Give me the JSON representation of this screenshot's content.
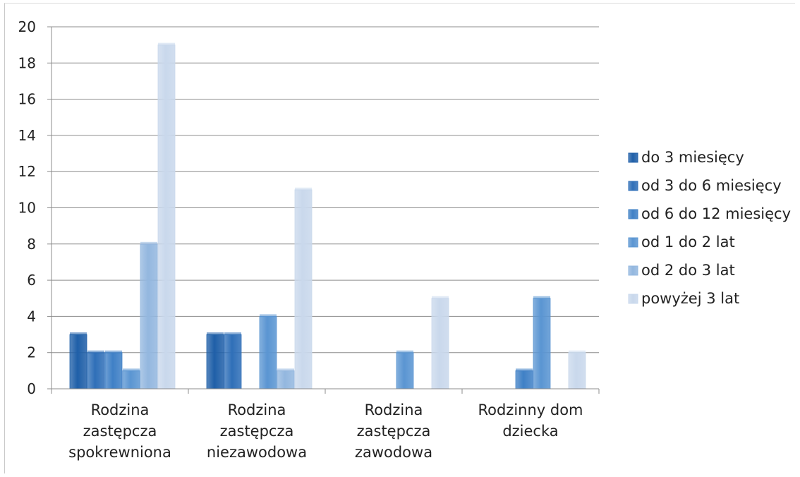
{
  "chart_data": {
    "type": "bar",
    "title": "",
    "xlabel": "",
    "ylabel": "",
    "ylim": [
      0,
      20
    ],
    "yticks": [
      0,
      2,
      4,
      6,
      8,
      10,
      12,
      14,
      16,
      18,
      20
    ],
    "grid": true,
    "legend_position": "right",
    "categories": [
      [
        "Rodzina",
        "zastępcza",
        "spokrewniona"
      ],
      [
        "Rodzina",
        "zastępcza",
        "niezawodowa"
      ],
      [
        "Rodzina",
        "zastępcza",
        "zawodowa"
      ],
      [
        "Rodzinny dom",
        "dziecka"
      ]
    ],
    "series": [
      {
        "name": "do 3 miesięcy",
        "color": "#1f5fa8",
        "values": [
          3,
          3,
          0,
          0
        ]
      },
      {
        "name": "od 3 do 6 miesięcy",
        "color": "#2f6fb8",
        "values": [
          2,
          3,
          0,
          0
        ]
      },
      {
        "name": "od 6 do 12 miesięcy",
        "color": "#3f80c6",
        "values": [
          2,
          0,
          0,
          1
        ]
      },
      {
        "name": "od 1 do 2 lat",
        "color": "#5a95d2",
        "values": [
          1,
          4,
          2,
          5
        ]
      },
      {
        "name": "od 2 do 3 lat",
        "color": "#93b7df",
        "values": [
          8,
          1,
          0,
          0
        ]
      },
      {
        "name": "powyżej 3 lat",
        "color": "#c9d8ec",
        "values": [
          19,
          11,
          5,
          2
        ]
      }
    ]
  }
}
